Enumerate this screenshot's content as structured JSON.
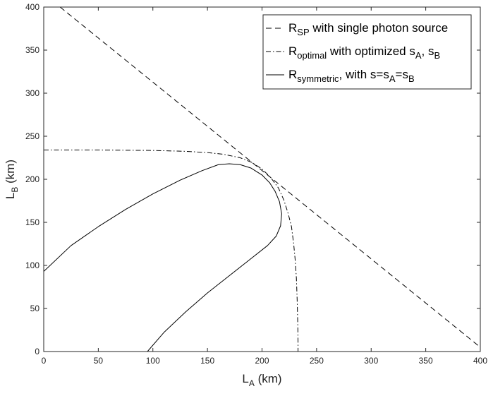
{
  "chart_data": {
    "type": "line",
    "xlabel": {
      "main": "L",
      "sub": "A",
      "unit": " (km)"
    },
    "ylabel": {
      "main": "L",
      "sub": "B",
      "unit": " (km)"
    },
    "xlim": [
      0,
      400
    ],
    "ylim": [
      0,
      400
    ],
    "xticks": [
      0,
      50,
      100,
      150,
      200,
      250,
      300,
      350,
      400
    ],
    "yticks": [
      0,
      50,
      100,
      150,
      200,
      250,
      300,
      350,
      400
    ],
    "grid": false,
    "legend_position": "top-right",
    "series": [
      {
        "key": "rsp",
        "legend": [
          {
            "t": "R"
          },
          {
            "t": "SP",
            "sub": true
          },
          {
            "t": " with single photon source"
          }
        ],
        "style": "dashed",
        "color": "#000000",
        "x": [
          15,
          410
        ],
        "y": [
          400,
          5
        ]
      },
      {
        "key": "roptimal",
        "legend": [
          {
            "t": "R"
          },
          {
            "t": "optimal",
            "sub": true
          },
          {
            "t": " with optimized s"
          },
          {
            "t": "A",
            "sub": true
          },
          {
            "t": ", s"
          },
          {
            "t": "B",
            "sub": true
          }
        ],
        "style": "dashdot",
        "color": "#000000",
        "x": [
          0,
          50,
          100,
          130,
          150,
          165,
          180,
          190,
          200,
          208,
          215,
          220,
          224,
          227,
          229,
          230.5,
          231.5,
          232.2,
          232.8,
          233,
          233
        ],
        "y": [
          234,
          234,
          233.5,
          232.5,
          231,
          229,
          225,
          220,
          212,
          202,
          190,
          176,
          160,
          145,
          125,
          105,
          85,
          60,
          30,
          10,
          0
        ]
      },
      {
        "key": "rsymmetric",
        "legend": [
          {
            "t": "R"
          },
          {
            "t": "symmetric",
            "sub": true
          },
          {
            "t": ", with s=s"
          },
          {
            "t": "A",
            "sub": true
          },
          {
            "t": "=s"
          },
          {
            "t": "B",
            "sub": true
          }
        ],
        "style": "solid",
        "color": "#000000",
        "x": [
          0,
          25,
          50,
          75,
          100,
          125,
          145,
          160,
          170,
          180,
          190,
          200,
          207,
          212,
          216,
          218,
          217,
          213,
          205,
          190,
          170,
          150,
          130,
          110,
          95
        ],
        "y": [
          93,
          123,
          145,
          165,
          183,
          199,
          210,
          217,
          218,
          217,
          213,
          205,
          196,
          186,
          174,
          160,
          146,
          134,
          123,
          108,
          88,
          68,
          46,
          22,
          0
        ]
      }
    ]
  }
}
